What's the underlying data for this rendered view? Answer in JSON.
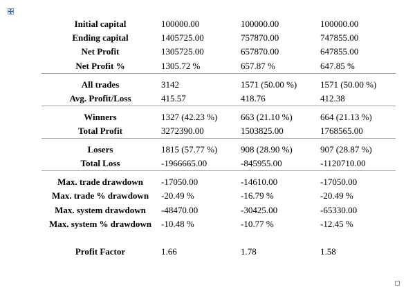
{
  "icons": {
    "table_move_handle": "four-arrow-move-icon",
    "table_resize_handle": "resize-square-icon"
  },
  "table": {
    "groups": [
      {
        "rows": [
          {
            "label": "Initial capital",
            "values": [
              "100000.00",
              "100000.00",
              "100000.00"
            ]
          },
          {
            "label": "Ending capital",
            "values": [
              "1405725.00",
              "757870.00",
              "747855.00"
            ]
          },
          {
            "label": "Net Profit",
            "values": [
              "1305725.00",
              "657870.00",
              "647855.00"
            ]
          },
          {
            "label": "Net Profit %",
            "values": [
              "1305.72 %",
              "657.87 %",
              "647.85 %"
            ]
          }
        ]
      },
      {
        "rows": [
          {
            "label": "All trades",
            "values": [
              "3142",
              "1571 (50.00 %)",
              "1571 (50.00 %)"
            ]
          },
          {
            "label": "Avg. Profit/Loss",
            "values": [
              "415.57",
              "418.76",
              "412.38"
            ]
          }
        ]
      },
      {
        "rows": [
          {
            "label": "Winners",
            "values": [
              "1327 (42.23 %)",
              "663 (21.10 %)",
              "664 (21.13 %)"
            ]
          },
          {
            "label": "Total Profit",
            "values": [
              "3272390.00",
              "1503825.00",
              "1768565.00"
            ]
          }
        ]
      },
      {
        "rows": [
          {
            "label": "Losers",
            "values": [
              "1815 (57.77 %)",
              "908 (28.90 %)",
              "907 (28.87 %)"
            ]
          },
          {
            "label": "Total Loss",
            "values": [
              "-1966665.00",
              "-845955.00",
              "-1120710.00"
            ]
          }
        ]
      },
      {
        "rows": [
          {
            "label": "Max. trade drawdown",
            "values": [
              "-17050.00",
              "-14610.00",
              "-17050.00"
            ]
          },
          {
            "label": "Max. trade % drawdown",
            "values": [
              "-20.49 %",
              "-16.79 %",
              "-20.49 %"
            ]
          },
          {
            "label": "Max. system drawdown",
            "values": [
              "-48470.00",
              "-30425.00",
              "-65330.00"
            ]
          },
          {
            "label": "Max. system % drawdown",
            "values": [
              "-10.48 %",
              "-10.77 %",
              "-12.45 %"
            ]
          },
          {
            "label": "",
            "values": [
              "",
              "",
              ""
            ]
          },
          {
            "label": "Profit Factor",
            "values": [
              "1.66",
              "1.78",
              "1.58"
            ]
          }
        ]
      }
    ]
  }
}
